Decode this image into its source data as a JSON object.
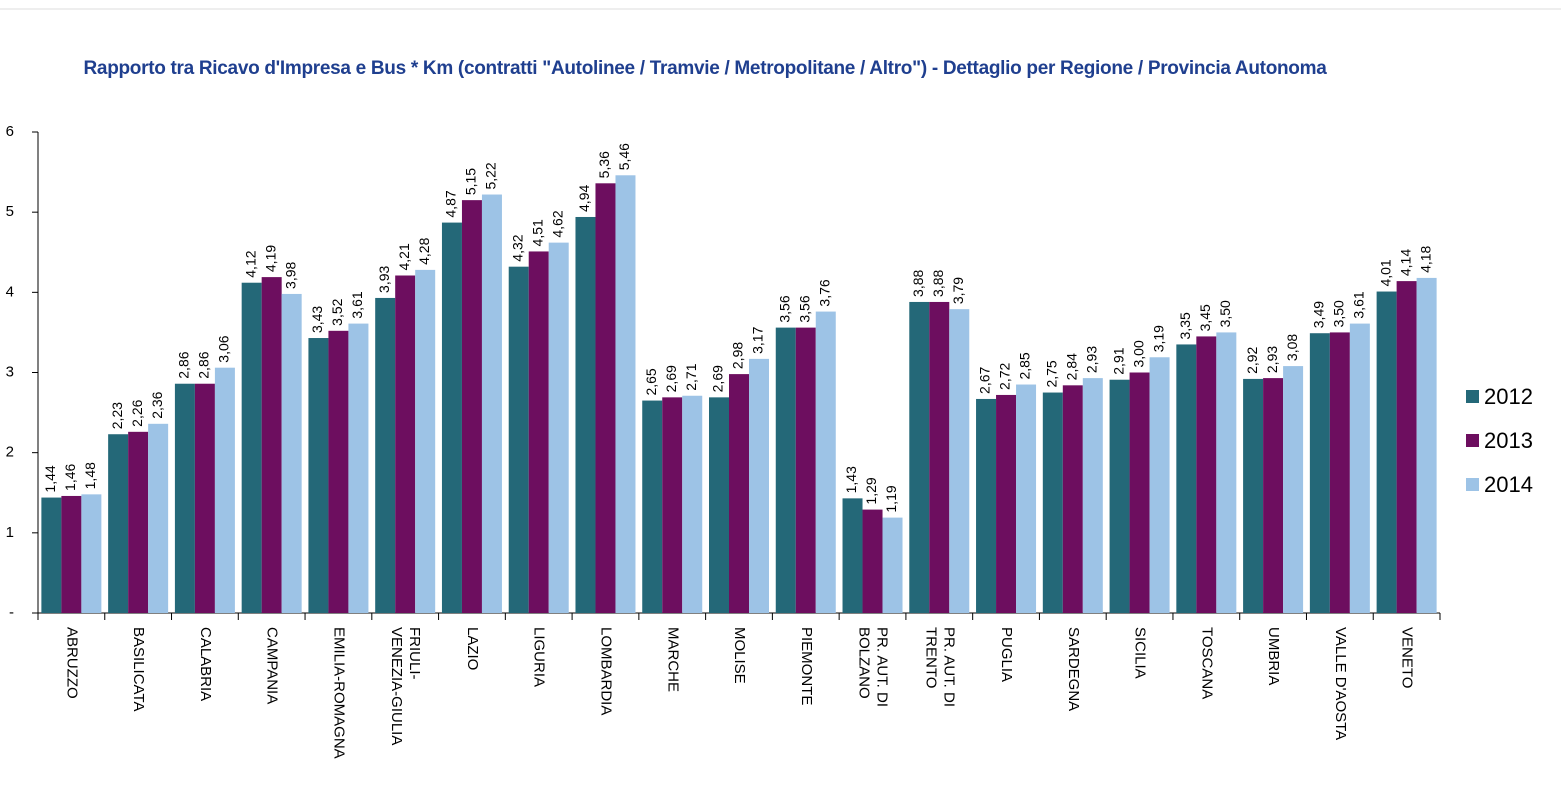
{
  "chart_data": {
    "type": "bar",
    "title": "Rapporto tra Ricavo d'Impresa e Bus * Km (contratti \"Autolinee / Tramvie / Metropolitane / Altro\") - Dettaglio per Regione / Provincia Autonoma",
    "categories": [
      "ABRUZZO",
      "BASILICATA",
      "CALABRIA",
      "CAMPANIA",
      "EMILIA-ROMAGNA",
      "FRIULI-VENEZIA-GIULIA",
      "LAZIO",
      "LIGURIA",
      "LOMBARDIA",
      "MARCHE",
      "MOLISE",
      "PIEMONTE",
      "PR. AUT. DI BOLZANO",
      "PR. AUT. DI TRENTO",
      "PUGLIA",
      "SARDEGNA",
      "SICILIA",
      "TOSCANA",
      "UMBRIA",
      "VALLE D'AOSTA",
      "VENETO"
    ],
    "series": [
      {
        "name": "2012",
        "color": "#246878",
        "values": [
          1.44,
          2.23,
          2.86,
          4.12,
          3.43,
          3.93,
          4.87,
          4.32,
          4.94,
          2.65,
          2.69,
          3.56,
          1.43,
          3.88,
          2.67,
          2.75,
          2.91,
          3.35,
          2.92,
          3.49,
          4.01
        ],
        "value_labels": [
          "1,44",
          "2,23",
          "2,86",
          "4,12",
          "3,43",
          "3,93",
          "4,87",
          "4,32",
          "4,94",
          "2,65",
          "2,69",
          "3,56",
          "1,43",
          "3,88",
          "2,67",
          "2,75",
          "2,91",
          "3,35",
          "2,92",
          "3,49",
          "4,01"
        ]
      },
      {
        "name": "2013",
        "color": "#6d0e5f",
        "values": [
          1.46,
          2.26,
          2.86,
          4.19,
          3.52,
          4.21,
          5.15,
          4.51,
          5.36,
          2.69,
          2.98,
          3.56,
          1.29,
          3.88,
          2.72,
          2.84,
          3.0,
          3.45,
          2.93,
          3.5,
          4.14
        ],
        "value_labels": [
          "1,46",
          "2,26",
          "2,86",
          "4,19",
          "3,52",
          "4,21",
          "5,15",
          "4,51",
          "5,36",
          "2,69",
          "2,98",
          "3,56",
          "1,29",
          "3,88",
          "2,72",
          "2,84",
          "3,00",
          "3,45",
          "2,93",
          "3,50",
          "4,14"
        ]
      },
      {
        "name": "2014",
        "color": "#9dc3e6",
        "values": [
          1.48,
          2.36,
          3.06,
          3.98,
          3.61,
          4.28,
          5.22,
          4.62,
          5.46,
          2.71,
          3.17,
          3.76,
          1.19,
          3.79,
          2.85,
          2.93,
          3.19,
          3.5,
          3.08,
          3.61,
          4.18
        ],
        "value_labels": [
          "1,48",
          "2,36",
          "3,06",
          "3,98",
          "3,61",
          "4,28",
          "5,22",
          "4,62",
          "5,46",
          "2,71",
          "3,17",
          "3,76",
          "1,19",
          "3,79",
          "2,85",
          "2,93",
          "3,19",
          "3,50",
          "3,08",
          "3,61",
          "4,18"
        ]
      }
    ],
    "ylim": [
      0,
      6
    ],
    "yticks": [
      {
        "value": 0,
        "label": "-"
      },
      1,
      2,
      3,
      4,
      5,
      6
    ],
    "legend": "right"
  }
}
